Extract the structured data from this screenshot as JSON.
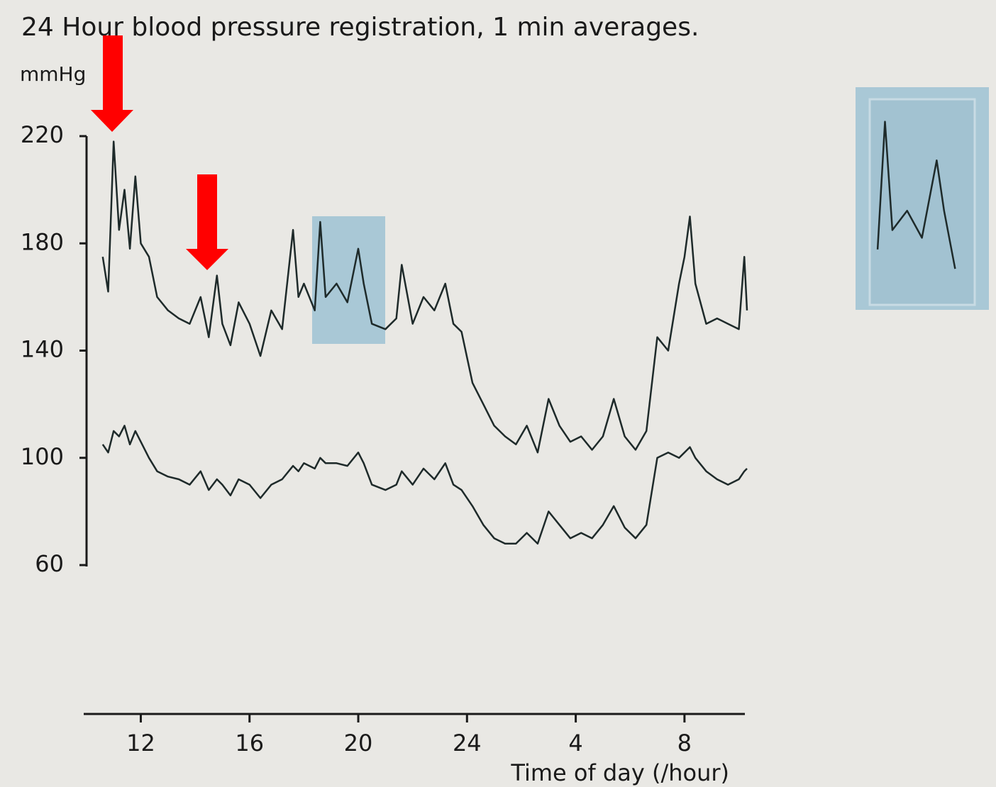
{
  "chart_data": {
    "type": "line",
    "title": "24 Hour blood pressure registration,  1 min averages.",
    "ylabel": "mmHg",
    "xlabel": "Time of day (/hour)",
    "x": [
      10.6,
      10.8,
      11.0,
      11.2,
      11.4,
      11.6,
      11.8,
      12.0,
      12.3,
      12.6,
      13.0,
      13.4,
      13.8,
      14.2,
      14.5,
      14.8,
      15.0,
      15.3,
      15.6,
      16.0,
      16.4,
      16.8,
      17.2,
      17.6,
      17.8,
      18.0,
      18.4,
      18.6,
      18.8,
      19.2,
      19.6,
      20.0,
      20.2,
      20.5,
      21.0,
      21.4,
      21.6,
      22.0,
      22.4,
      22.8,
      23.2,
      23.5,
      23.8,
      24.2,
      24.6,
      25.0,
      25.4,
      25.8,
      26.2,
      26.6,
      27.0,
      27.4,
      27.8,
      28.2,
      28.6,
      29.0,
      29.4,
      29.8,
      30.2,
      30.6,
      31.0,
      31.4,
      31.8,
      32.0,
      32.2,
      32.4,
      32.8,
      33.2,
      33.6,
      34.0,
      34.2,
      34.3
    ],
    "series": [
      {
        "color": "#1e2a2a",
        "values": [
          175,
          162,
          218,
          185,
          200,
          178,
          205,
          180,
          175,
          160,
          155,
          152,
          150,
          160,
          145,
          168,
          150,
          142,
          158,
          150,
          138,
          155,
          148,
          185,
          160,
          165,
          155,
          188,
          160,
          165,
          158,
          178,
          165,
          150,
          148,
          152,
          172,
          150,
          160,
          155,
          165,
          150,
          147,
          128,
          120,
          112,
          108,
          105,
          112,
          102,
          122,
          112,
          106,
          108,
          103,
          108,
          122,
          108,
          103,
          110,
          145,
          140,
          165,
          175,
          190,
          165,
          150,
          152,
          150,
          148,
          175,
          155
        ]
      },
      {
        "color": "#1e2a2a",
        "values": [
          105,
          102,
          110,
          108,
          112,
          105,
          110,
          106,
          100,
          95,
          93,
          92,
          90,
          95,
          88,
          92,
          90,
          86,
          92,
          90,
          85,
          90,
          92,
          97,
          95,
          98,
          96,
          100,
          98,
          98,
          97,
          102,
          98,
          90,
          88,
          90,
          95,
          90,
          96,
          92,
          98,
          90,
          88,
          82,
          75,
          70,
          68,
          68,
          72,
          68,
          80,
          75,
          70,
          72,
          70,
          75,
          82,
          74,
          70,
          75,
          100,
          102,
          100,
          102,
          104,
          100,
          95,
          92,
          90,
          92,
          95,
          96
        ]
      }
    ],
    "xlim": [
      9.9,
      34.3
    ],
    "xticks": [
      12,
      16,
      20,
      24,
      {
        "value": 28,
        "label": "4"
      },
      {
        "value": 32,
        "label": "8"
      }
    ],
    "ylim": [
      60,
      220
    ],
    "yticks": [
      60,
      100,
      140,
      180,
      220
    ],
    "grid": false
  }
}
